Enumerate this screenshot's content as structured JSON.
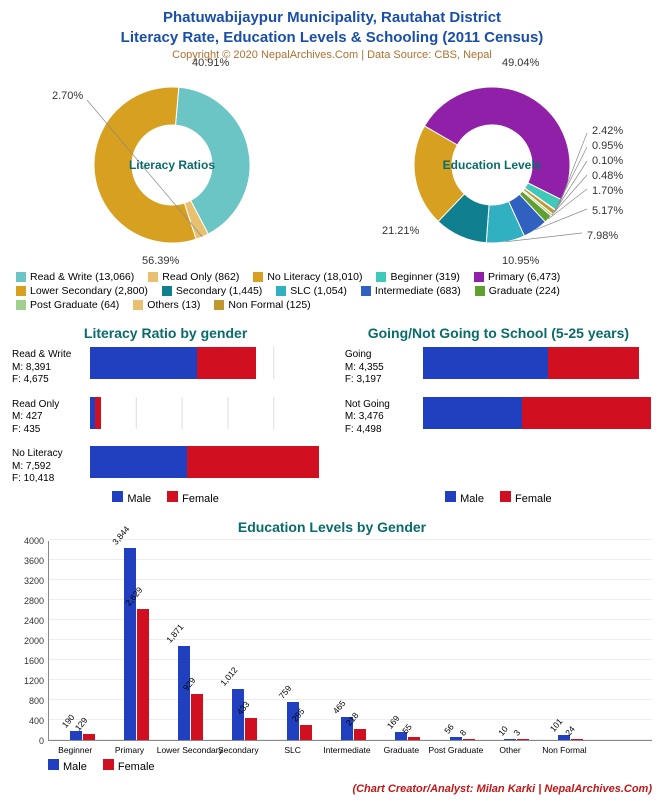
{
  "title1": "Phatuwabijaypur Municipality, Rautahat District",
  "title2": "Literacy Rate, Education Levels & Schooling (2011 Census)",
  "copyright": "Copyright © 2020 NepalArchives.Com | Data Source: CBS, Nepal",
  "credit": "(Chart Creator/Analyst: Milan Karki | NepalArchives.Com)",
  "colors": {
    "male": "#2040c0",
    "female": "#d01020",
    "title_blue": "#1a4fa8",
    "teal": "#0a6b6b"
  },
  "donut1": {
    "center_label": "Literacy\nRatios",
    "slices": [
      {
        "label": "Read & Write",
        "count": 13066,
        "pct": 40.91,
        "color": "#6bc5c5"
      },
      {
        "label": "Read Only",
        "count": 862,
        "pct": 2.7,
        "color": "#e8c070"
      },
      {
        "label": "No Literacy",
        "count": 18010,
        "pct": 56.39,
        "color": "#d8a020"
      }
    ]
  },
  "donut2": {
    "center_label": "Education\nLevels",
    "slices": [
      {
        "label": "Primary",
        "count": 6473,
        "pct": 49.04,
        "color": "#9020a8"
      },
      {
        "label": "Beginner",
        "count": 319,
        "pct": 2.42,
        "color": "#40c8b8"
      },
      {
        "label": "Others",
        "count": 13,
        "pct": 0.1,
        "color": "#e8c070"
      },
      {
        "label": "Non Formal",
        "count": 125,
        "pct": 0.95,
        "color": "#c09830"
      },
      {
        "label": "Post Graduate",
        "count": 64,
        "pct": 0.48,
        "color": "#a0d090"
      },
      {
        "label": "Graduate",
        "count": 224,
        "pct": 1.7,
        "color": "#60a030"
      },
      {
        "label": "Intermediate",
        "count": 683,
        "pct": 5.17,
        "color": "#3060c0"
      },
      {
        "label": "SLC",
        "count": 1054,
        "pct": 7.98,
        "color": "#30b0c0"
      },
      {
        "label": "Secondary",
        "count": 1445,
        "pct": 10.95,
        "color": "#108090"
      },
      {
        "label": "Lower Secondary",
        "count": 2800,
        "pct": 21.21,
        "color": "#d8a020"
      }
    ],
    "legend_order": [
      "Primary",
      "Lower Secondary",
      "Secondary",
      "SLC",
      "Intermediate",
      "Graduate",
      "Post Graduate",
      "Others",
      "Beginner",
      "Non Formal"
    ]
  },
  "hbar_left": {
    "title": "Literacy Ratio by gender",
    "max": 18010,
    "rows": [
      {
        "label": "Read & Write",
        "m": 8391,
        "f": 4675
      },
      {
        "label": "Read Only",
        "m": 427,
        "f": 435
      },
      {
        "label": "No Literacy",
        "m": 7592,
        "f": 10418
      }
    ]
  },
  "hbar_right": {
    "title": "Going/Not Going to School (5-25 years)",
    "max": 8000,
    "rows": [
      {
        "label": "Going",
        "m": 4355,
        "f": 3197
      },
      {
        "label": "Not Going",
        "m": 3476,
        "f": 4498
      }
    ]
  },
  "vbar": {
    "title": "Education Levels by Gender",
    "ymax": 4000,
    "ytick": 400,
    "cats": [
      {
        "label": "Beginner",
        "m": 190,
        "f": 129
      },
      {
        "label": "Primary",
        "m": 3844,
        "f": 2629
      },
      {
        "label": "Lower Secondary",
        "m": 1871,
        "f": 929
      },
      {
        "label": "Secondary",
        "m": 1012,
        "f": 433
      },
      {
        "label": "SLC",
        "m": 759,
        "f": 295
      },
      {
        "label": "Intermediate",
        "m": 465,
        "f": 218
      },
      {
        "label": "Graduate",
        "m": 169,
        "f": 55
      },
      {
        "label": "Post Graduate",
        "m": 56,
        "f": 8
      },
      {
        "label": "Other",
        "m": 10,
        "f": 3
      },
      {
        "label": "Non Formal",
        "m": 101,
        "f": 24
      }
    ]
  },
  "mf_legend": {
    "m": "Male",
    "f": "Female"
  }
}
